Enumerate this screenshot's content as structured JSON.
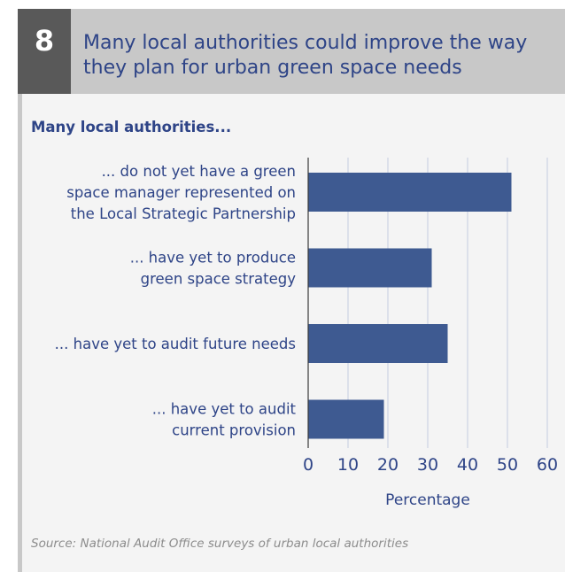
{
  "figure": {
    "number": "8",
    "title": "Many local authorities could improve the way they plan for urban green space needs",
    "subtitle": "Many local authorities...",
    "source": "Source: National Audit Office surveys of urban local authorities"
  },
  "colors": {
    "bar": "#3e5a91",
    "text": "#2e4487",
    "grid": "#c5cbe0",
    "header_bg": "#c8c8c8",
    "badge_bg": "#595959",
    "panel_bg": "#f4f4f4"
  },
  "chart_data": {
    "type": "bar",
    "orientation": "horizontal",
    "categories": [
      "... do not yet have a green space manager represented on the Local Strategic Partnership",
      "... have yet to produce green space strategy",
      "... have yet to audit future needs",
      "... have yet to audit current provision"
    ],
    "category_lines": [
      [
        "... do not yet have a green",
        "space manager represented on",
        "the Local Strategic Partnership"
      ],
      [
        "... have yet to produce",
        "green space strategy"
      ],
      [
        "... have yet to audit future needs"
      ],
      [
        "... have yet to audit",
        "current provision"
      ]
    ],
    "values": [
      51,
      31,
      35,
      19
    ],
    "xlabel": "Percentage",
    "xticks": [
      0,
      10,
      20,
      30,
      40,
      50,
      60
    ],
    "xlim": [
      0,
      60
    ],
    "grid": true
  }
}
